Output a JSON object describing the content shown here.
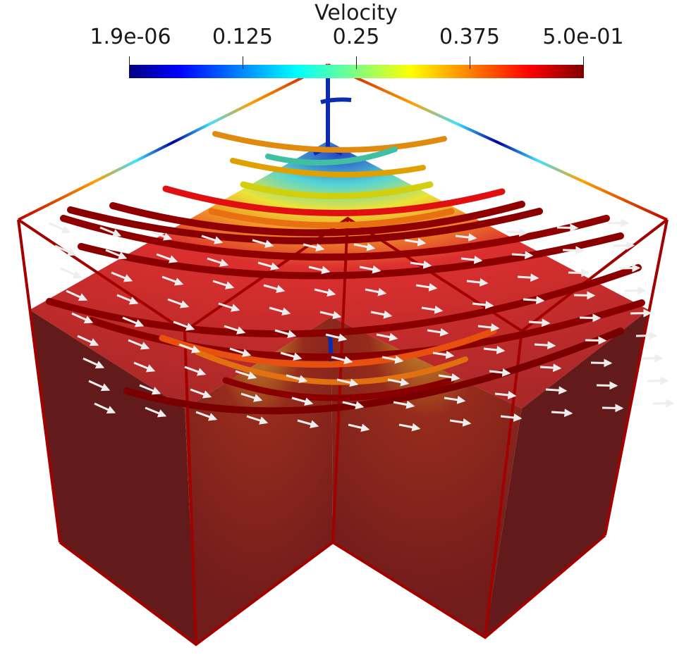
{
  "legend": {
    "title": "Velocity",
    "ticks": [
      "1.9e-06",
      "0.125",
      "0.25",
      "0.375",
      "5.0e-01"
    ],
    "colormap": [
      "#00007f",
      "#0000ff",
      "#0080ff",
      "#00ffff",
      "#80ff80",
      "#ffff00",
      "#ff8000",
      "#ff0000",
      "#800000"
    ]
  },
  "colors": {
    "box_edge": "#a30000",
    "solid_fill": "#6a1010",
    "arrow": "#eeeeee"
  }
}
